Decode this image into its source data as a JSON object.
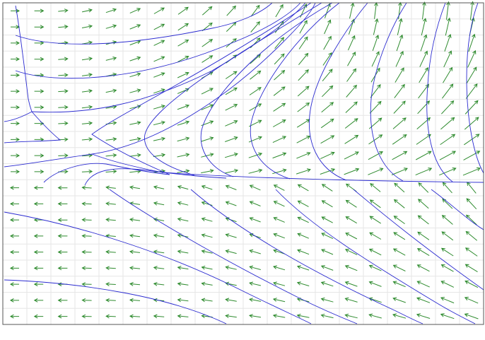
{
  "figure": {
    "kind": "phase portrait",
    "grid": true,
    "colors": {
      "background": "#ffffff",
      "frame": "#555555",
      "grid": "#e6e6e6",
      "vector_arrows": "#2e8b2e",
      "trajectories": "#2b2bd0"
    },
    "vector_field": {
      "columns": 20,
      "rows": 20,
      "sign_change_row": 11
    },
    "trajectory_count": 24
  }
}
